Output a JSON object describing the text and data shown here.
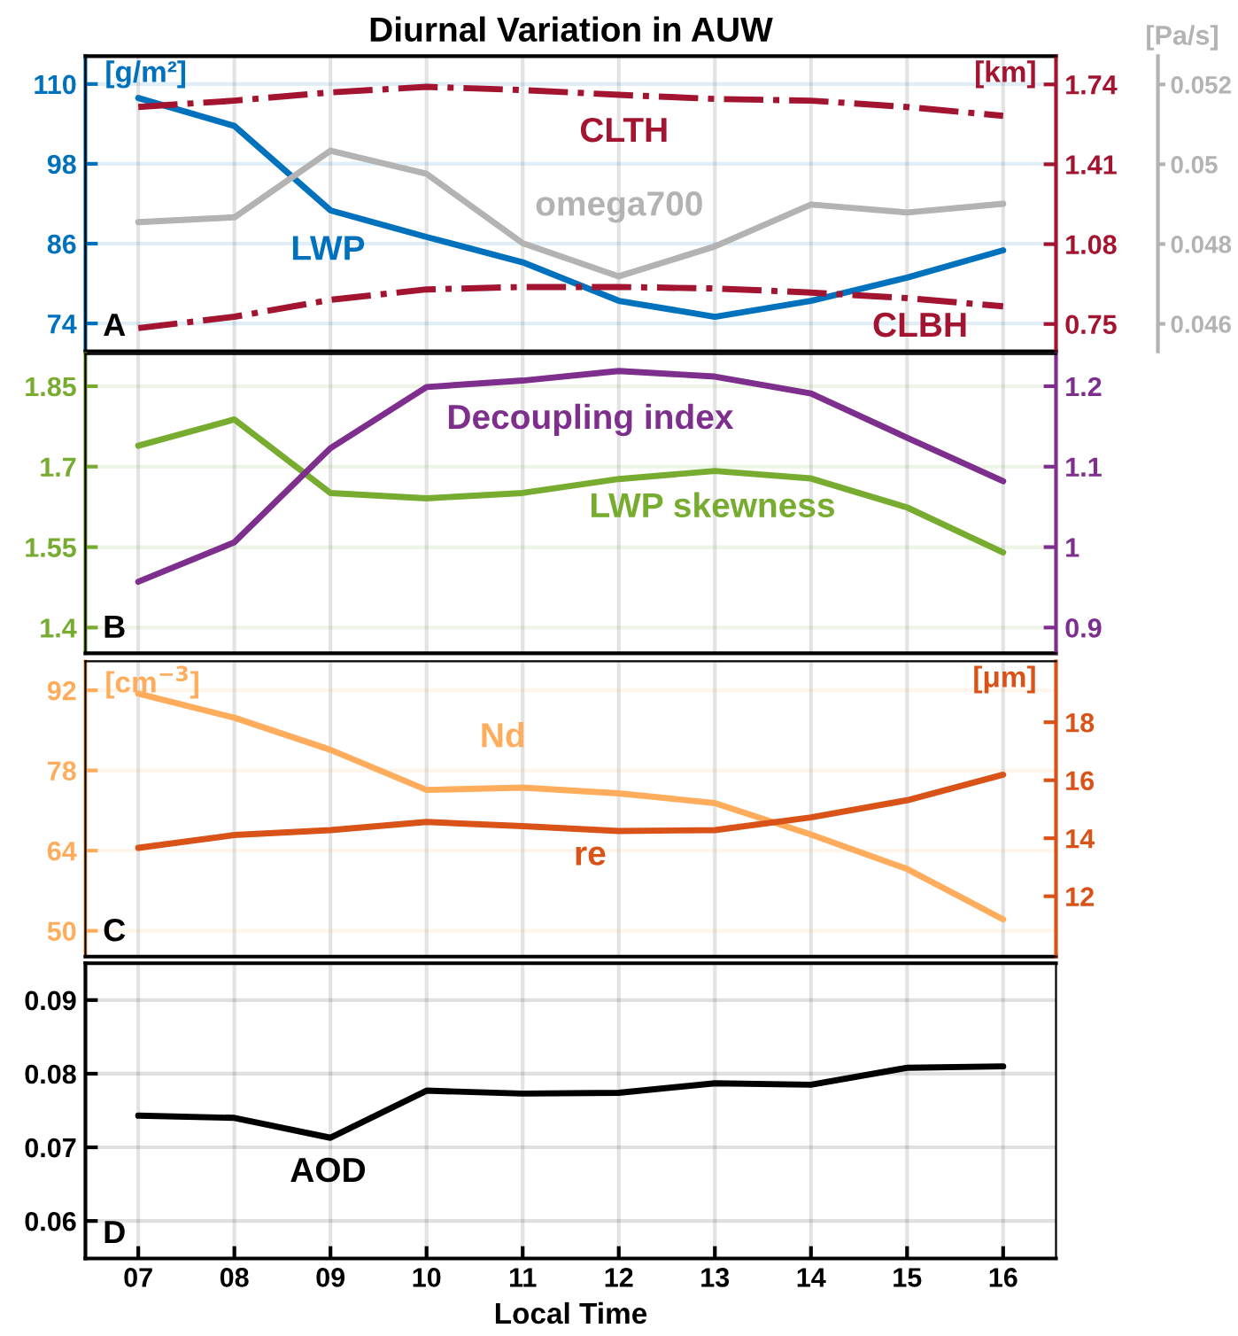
{
  "chart_data": [
    {
      "type": "line",
      "title": "Diurnal Variation in AUW",
      "categories": [
        "07",
        "08",
        "09",
        "10",
        "11",
        "12",
        "13",
        "14",
        "15",
        "16"
      ],
      "tick_labels": "y",
      "grid": true,
      "legend": false,
      "ylabel": "[g/m²]",
      "y2label": "[km]",
      "y3label": "[Pa/s]",
      "ylim": [
        69.8,
        114.2
      ],
      "yticks": [
        74,
        86,
        98,
        110
      ],
      "y2lim": [
        0.637,
        1.857
      ],
      "y2ticks": [
        0.75,
        1.08,
        1.41,
        1.74
      ],
      "y3lim": [
        0.04531,
        0.05271
      ],
      "y3ticks": [
        0.046,
        0.048,
        0.05,
        0.052
      ],
      "annotations": [
        "A"
      ],
      "series": [
        {
          "name": "LWP",
          "color": "#0072bd",
          "axis": "y",
          "line_style": "solid",
          "values": [
            107.9,
            103.7,
            91.0,
            87.0,
            83.2,
            77.4,
            75.0,
            77.4,
            80.9,
            85.0
          ]
        },
        {
          "name": "CLTH",
          "color": "#a2142f",
          "axis": "y2",
          "line_style": "dashdot",
          "values": [
            1.647,
            1.673,
            1.707,
            1.73,
            1.717,
            1.697,
            1.68,
            1.673,
            1.647,
            1.61
          ]
        },
        {
          "name": "CLBH",
          "color": "#a2142f",
          "axis": "y2",
          "line_style": "dashdot",
          "values": [
            0.733,
            0.78,
            0.85,
            0.893,
            0.903,
            0.903,
            0.897,
            0.88,
            0.857,
            0.823
          ]
        },
        {
          "name": "omega700",
          "color": "#b3b3b3",
          "axis": "y3",
          "line_style": "solid",
          "values": [
            0.04855,
            0.04867,
            0.05034,
            0.04976,
            0.04802,
            0.04719,
            0.04794,
            0.04899,
            0.04879,
            0.04901
          ]
        }
      ]
    },
    {
      "type": "line",
      "categories": [
        "07",
        "08",
        "09",
        "10",
        "11",
        "12",
        "13",
        "14",
        "15",
        "16"
      ],
      "tick_labels": "y",
      "grid": true,
      "legend": false,
      "ylim": [
        1.352,
        1.91
      ],
      "yticks": [
        1.4,
        1.55,
        1.7,
        1.85
      ],
      "y2lim": [
        0.868,
        1.24
      ],
      "y2ticks": [
        0.9,
        1,
        1.1,
        1.2
      ],
      "annotations": [
        "B"
      ],
      "series": [
        {
          "name": "LWP skewness",
          "color": "#77ac30",
          "axis": "y",
          "line_style": "solid",
          "values": [
            1.739,
            1.788,
            1.651,
            1.641,
            1.651,
            1.677,
            1.692,
            1.678,
            1.624,
            1.54
          ]
        },
        {
          "name": "Decoupling index",
          "color": "#7e2f8e",
          "axis": "y2",
          "line_style": "solid",
          "values": [
            0.957,
            1.006,
            1.123,
            1.199,
            1.207,
            1.219,
            1.212,
            1.191,
            1.136,
            1.082
          ]
        }
      ]
    },
    {
      "type": "line",
      "categories": [
        "07",
        "08",
        "09",
        "10",
        "11",
        "12",
        "13",
        "14",
        "15",
        "16"
      ],
      "tick_labels": "y",
      "grid": true,
      "legend": false,
      "ylabel": "[cm$^{−3}$]",
      "y2label": "[μm]",
      "ylim": [
        45.5,
        97.05
      ],
      "yticks": [
        50,
        64,
        78,
        92
      ],
      "y2lim": [
        9.92,
        20.1
      ],
      "y2ticks": [
        12,
        14,
        16,
        18
      ],
      "annotations": [
        "C"
      ],
      "series": [
        {
          "name": "Nd",
          "color": "#ffad5c",
          "axis": "y",
          "line_style": "solid",
          "values": [
            91.4,
            87.2,
            81.6,
            74.6,
            75.0,
            74.0,
            72.3,
            66.8,
            60.8,
            52.0
          ]
        },
        {
          "name": "re",
          "color": "#d95319",
          "axis": "y2",
          "line_style": "solid",
          "values": [
            13.67,
            14.11,
            14.28,
            14.56,
            14.42,
            14.25,
            14.28,
            14.72,
            15.31,
            16.19
          ]
        }
      ]
    },
    {
      "type": "line",
      "categories": [
        "07",
        "08",
        "09",
        "10",
        "11",
        "12",
        "13",
        "14",
        "15",
        "16"
      ],
      "grid": true,
      "legend": false,
      "xlabel": "Local Time",
      "ylim": [
        0.0549,
        0.095
      ],
      "yticks": [
        0.06,
        0.07,
        0.08,
        0.09
      ],
      "annotations": [
        "D"
      ],
      "series": [
        {
          "name": "AOD",
          "color": "#000000",
          "axis": "y",
          "line_style": "solid",
          "values": [
            0.0743,
            0.074,
            0.0713,
            0.0777,
            0.0773,
            0.0774,
            0.0787,
            0.0785,
            0.0808,
            0.081
          ]
        }
      ]
    }
  ]
}
